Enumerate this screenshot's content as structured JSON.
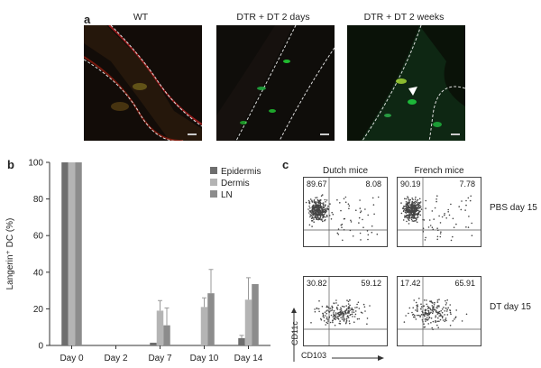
{
  "panel_a": {
    "letter": "a",
    "images": [
      {
        "title": "WT"
      },
      {
        "title": "DTR + DT 2 days"
      },
      {
        "title": "DTR + DT 2 weeks"
      }
    ]
  },
  "panel_b": {
    "letter": "b"
  },
  "panel_c": {
    "letter": "c",
    "columns": [
      "Dutch mice",
      "French mice"
    ],
    "rows": [
      "PBS day 15",
      "DT day 15"
    ],
    "x_label": "CD103",
    "y_label": "CD11c",
    "quadrants": [
      {
        "tl": "89.67",
        "tr": "8.08"
      },
      {
        "tl": "90.19",
        "tr": "7.78"
      },
      {
        "tl": "30.82",
        "tr": "59.12"
      },
      {
        "tl": "17.42",
        "tr": "65.91"
      }
    ]
  },
  "chart_data": {
    "type": "bar",
    "ylabel": "Langerin⁺ DC (%)",
    "xlabel": "",
    "ylim": [
      0,
      100
    ],
    "yticks": [
      0,
      20,
      40,
      60,
      80,
      100
    ],
    "categories": [
      "Day 0",
      "Day 2",
      "Day 7",
      "Day 10",
      "Day 14"
    ],
    "legend_position": "top-right",
    "series": [
      {
        "name": "Epidermis",
        "color": "#6e6e6e",
        "values": [
          100,
          0,
          1.5,
          0,
          4
        ],
        "errors": [
          0,
          0,
          0,
          0,
          1.5
        ]
      },
      {
        "name": "Dermis",
        "color": "#b4b4b4",
        "values": [
          100,
          0,
          19,
          21,
          25
        ],
        "errors": [
          0,
          0,
          5.5,
          5,
          12
        ]
      },
      {
        "name": "LN",
        "color": "#8c8c8c",
        "values": [
          100,
          0,
          11,
          28.5,
          33.5
        ],
        "errors": [
          0,
          0,
          9.5,
          13,
          0
        ]
      }
    ]
  }
}
